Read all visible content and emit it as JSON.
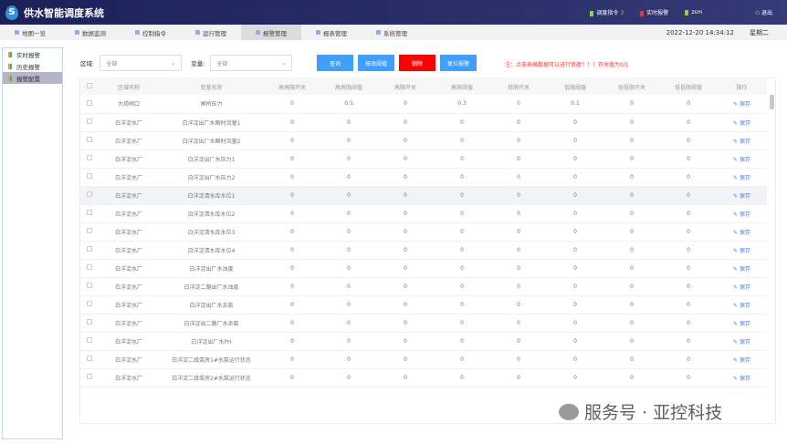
{
  "header": {
    "title": "供水智能调度系统",
    "dispatch": "调度指令",
    "dispatch_count": "3",
    "alarm": "实时报警",
    "user": "zsm",
    "logout": "退出"
  },
  "nav": {
    "items": [
      "地图一览",
      "数据监测",
      "控制指令",
      "运行管理",
      "报警管理",
      "报表管理",
      "系统管理"
    ],
    "active": 4,
    "datetime": "2022-12-20 14:34:12",
    "weekday": "星期二"
  },
  "sidebar": {
    "items": [
      "实时报警",
      "历史报警",
      "报警配置"
    ],
    "active": 2
  },
  "filters": {
    "area_label": "区域:",
    "area_value": "全部",
    "var_label": "变量:",
    "var_value": "全部"
  },
  "buttons": {
    "query": "查询",
    "modify": "修改阈值",
    "delete": "删除",
    "reset": "复位报警"
  },
  "colors": {
    "primary": "#409eff",
    "danger": "#ff0000",
    "header": "#1b2158"
  },
  "note": "注：点击表格数据可以进行修改！！！开关值为0/1",
  "table": {
    "headers": [
      "区域名称",
      "变量名称",
      "高高限开关",
      "高高限阈值",
      "高限开关",
      "高限阈值",
      "低限开关",
      "低限阈值",
      "低低限开关",
      "低低限阈值",
      "操作"
    ],
    "op_label": "保存",
    "rows": [
      [
        "大捞闸口",
        "闸桥压力",
        "0",
        "0.5",
        "0",
        "0.3",
        "0",
        "0.1",
        "0",
        "0"
      ],
      [
        "白洋淀水厂",
        "白洋淀出厂水瞬时流量1",
        "0",
        "0",
        "0",
        "0",
        "0",
        "0",
        "0",
        "0"
      ],
      [
        "白洋淀水厂",
        "白洋淀出厂水瞬时流量2",
        "0",
        "0",
        "0",
        "0",
        "0",
        "0",
        "0",
        "0"
      ],
      [
        "白洋淀水厂",
        "白洋淀出厂水压力1",
        "0",
        "0",
        "0",
        "0",
        "0",
        "0",
        "0",
        "0"
      ],
      [
        "白洋淀水厂",
        "白洋淀出厂水压力2",
        "0",
        "0",
        "0",
        "0",
        "0",
        "0",
        "0",
        "0"
      ],
      [
        "白洋淀水厂",
        "白洋淀清水库水位1",
        "0",
        "0",
        "0",
        "0",
        "0",
        "0",
        "0",
        "0"
      ],
      [
        "白洋淀水厂",
        "白洋淀清水库水位2",
        "0",
        "0",
        "0",
        "0",
        "0",
        "0",
        "0",
        "0"
      ],
      [
        "白洋淀水厂",
        "白洋淀清水库水位3",
        "0",
        "0",
        "0",
        "0",
        "0",
        "0",
        "0",
        "0"
      ],
      [
        "白洋淀水厂",
        "白洋淀清水库水位4",
        "0",
        "0",
        "0",
        "0",
        "0",
        "0",
        "0",
        "0"
      ],
      [
        "白洋淀水厂",
        "白洋淀出厂水浊度",
        "0",
        "0",
        "0",
        "0",
        "0",
        "0",
        "0",
        "0"
      ],
      [
        "白洋淀水厂",
        "白洋淀二路出厂水浊度",
        "0",
        "0",
        "0",
        "0",
        "0",
        "0",
        "0",
        "0"
      ],
      [
        "白洋淀水厂",
        "白洋淀出厂水余氯",
        "0",
        "0",
        "0",
        "0",
        "0",
        "0",
        "0",
        "0"
      ],
      [
        "白洋淀水厂",
        "白洋淀出二路厂水余氯",
        "0",
        "0",
        "0",
        "0",
        "0",
        "0",
        "0",
        "0"
      ],
      [
        "白洋淀水厂",
        "白洋淀出厂水PH",
        "0",
        "0",
        "0",
        "0",
        "0",
        "0",
        "0",
        "0"
      ],
      [
        "白洋淀水厂",
        "白洋淀二级泵房1#水泵运行状态",
        "0",
        "0",
        "0",
        "0",
        "0",
        "0",
        "0",
        "0"
      ],
      [
        "白洋淀水厂",
        "白洋淀二级泵房2#水泵运行状态",
        "0",
        "0",
        "0",
        "0",
        "0",
        "0",
        "0",
        "0"
      ]
    ]
  },
  "watermark": "服务号 · 亚控科技"
}
